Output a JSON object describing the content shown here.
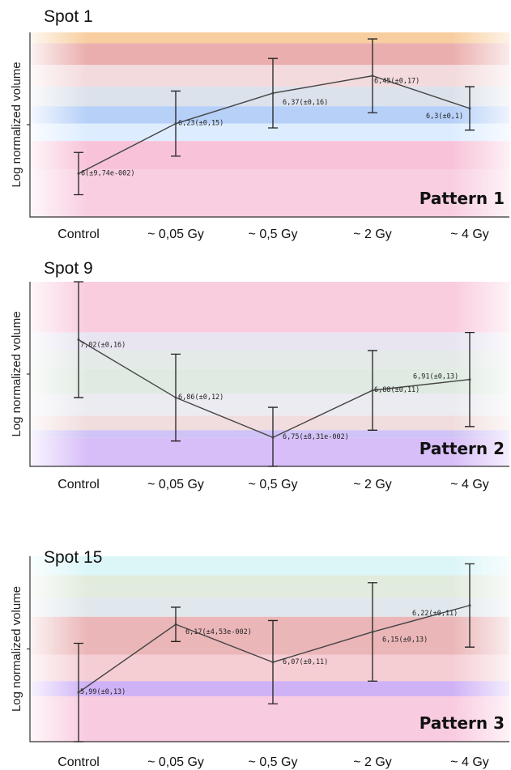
{
  "chart_data": [
    {
      "type": "line",
      "title": "Spot 1",
      "ylabel": "Log normalized volume",
      "pattern_label": "Pattern 1",
      "categories": [
        "Control",
        "~ 0,05 Gy",
        "~ 0,5 Gy",
        "~ 2 Gy",
        "~ 4 Gy"
      ],
      "values": [
        6.0,
        6.23,
        6.37,
        6.45,
        6.3
      ],
      "labels": [
        "6(±9,74e-002)",
        "6,23(±0,15)",
        "6,37(±0,16)",
        "6,45(±0,17)",
        "6,3(±0,1)"
      ],
      "errors": [
        0.0974,
        0.15,
        0.16,
        0.17,
        0.1
      ],
      "ylim": [
        5.8,
        6.65
      ],
      "bands": [
        {
          "from": 6.6,
          "to": 6.65,
          "color": "#f7c58f"
        },
        {
          "from": 6.5,
          "to": 6.6,
          "color": "#e8a0a0"
        },
        {
          "from": 6.4,
          "to": 6.5,
          "color": "#f1d4d6"
        },
        {
          "from": 6.31,
          "to": 6.4,
          "color": "#d6dde8"
        },
        {
          "from": 6.23,
          "to": 6.31,
          "color": "#a9c8f7"
        },
        {
          "from": 6.15,
          "to": 6.23,
          "color": "#d7eaff"
        },
        {
          "from": 6.02,
          "to": 6.15,
          "color": "#f7b9d2"
        },
        {
          "from": 5.8,
          "to": 6.02,
          "color": "#f8c6dc"
        }
      ]
    },
    {
      "type": "line",
      "title": "Spot 9",
      "ylabel": "Log normalized volume",
      "pattern_label": "Pattern 2",
      "categories": [
        "Control",
        "~ 0,05 Gy",
        "~ 0,5 Gy",
        "~ 2 Gy",
        "~ 4 Gy"
      ],
      "values": [
        7.02,
        6.86,
        6.75,
        6.88,
        6.91
      ],
      "labels": [
        "7,02(±0,16)",
        "6,86(±0,12)",
        "6,75(±8,31e-002)",
        "6,88(±0,11)",
        "6,91(±0,13)"
      ],
      "errors": [
        0.16,
        0.12,
        0.0831,
        0.11,
        0.13
      ],
      "ylim": [
        6.67,
        7.18
      ],
      "bands": [
        {
          "from": 7.04,
          "to": 7.18,
          "color": "#f8c3d8"
        },
        {
          "from": 6.99,
          "to": 7.04,
          "color": "#e4e1ee"
        },
        {
          "from": 6.94,
          "to": 6.99,
          "color": "#dfe6e4"
        },
        {
          "from": 6.87,
          "to": 6.94,
          "color": "#d9e8dd"
        },
        {
          "from": 6.81,
          "to": 6.87,
          "color": "#e9e7ee"
        },
        {
          "from": 6.77,
          "to": 6.81,
          "color": "#eed7d7"
        },
        {
          "from": 6.75,
          "to": 6.77,
          "color": "#c8b9f3"
        },
        {
          "from": 6.67,
          "to": 6.75,
          "color": "#d0b3f7"
        }
      ]
    },
    {
      "type": "line",
      "title": "Spot 15",
      "ylabel": "Log normalized volume",
      "pattern_label": "Pattern 3",
      "categories": [
        "Control",
        "~ 0,05 Gy",
        "~ 0,5 Gy",
        "~ 2 Gy",
        "~ 4 Gy"
      ],
      "values": [
        5.99,
        6.17,
        6.07,
        6.15,
        6.22
      ],
      "labels": [
        "5,99(±0,13)",
        "6,17(±4,53e-002)",
        "6,07(±0,11)",
        "6,15(±0,13)",
        "6,22(±0,11)"
      ],
      "errors": [
        0.13,
        0.0453,
        0.11,
        0.13,
        0.11
      ],
      "ylim": [
        5.86,
        6.35
      ],
      "bands": [
        {
          "from": 6.3,
          "to": 6.35,
          "color": "#d6f4f7"
        },
        {
          "from": 6.24,
          "to": 6.3,
          "color": "#dde9d8"
        },
        {
          "from": 6.19,
          "to": 6.24,
          "color": "#dce4ea"
        },
        {
          "from": 6.09,
          "to": 6.19,
          "color": "#e7a9ab"
        },
        {
          "from": 6.02,
          "to": 6.09,
          "color": "#f3c5cc"
        },
        {
          "from": 5.98,
          "to": 6.02,
          "color": "#c7a5f5"
        },
        {
          "from": 5.86,
          "to": 5.98,
          "color": "#f8c2da"
        }
      ]
    }
  ]
}
